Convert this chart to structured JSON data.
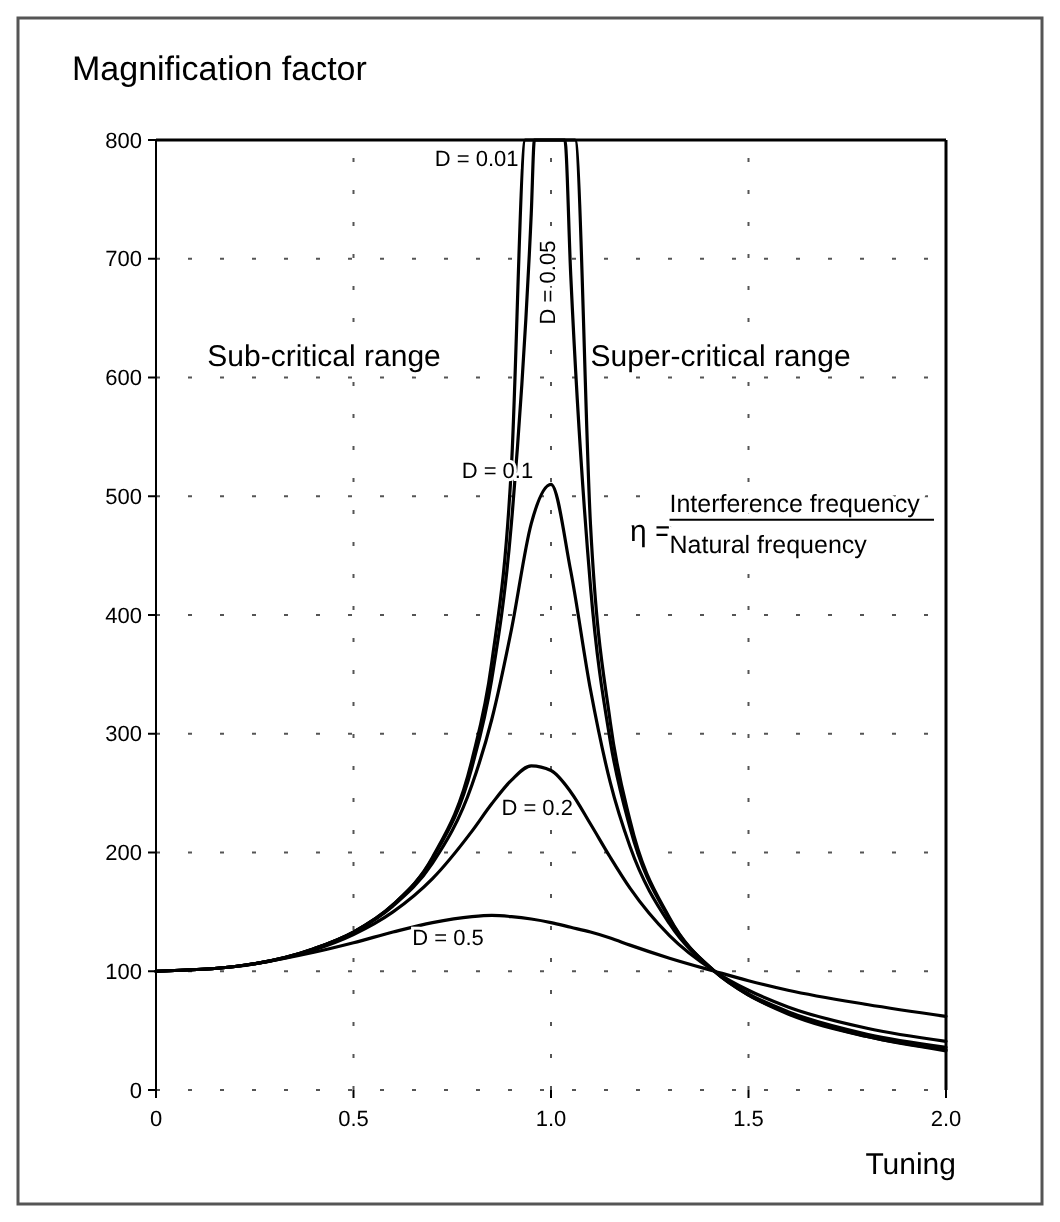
{
  "chart_data": {
    "type": "line",
    "title": "Magnification factor",
    "xlabel": "Tuning",
    "annotations": [
      "Sub-critical range",
      "Super-critical range",
      "η =",
      "Interference frequency",
      "Natural frequency"
    ],
    "x": [
      0,
      0.2,
      0.4,
      0.5,
      0.6,
      0.7,
      0.8,
      0.85,
      0.9,
      0.95,
      1.0,
      1.05,
      1.1,
      1.15,
      1.2,
      1.3,
      1.414,
      1.5,
      1.6,
      1.8,
      2.0
    ],
    "series": [
      {
        "name": "D = 0.01",
        "color": "#000000",
        "x": [
          0,
          0.2,
          0.4,
          0.5,
          0.6,
          0.7,
          0.8,
          0.85,
          0.9,
          0.935,
          1.061,
          1.1,
          1.15,
          1.2,
          1.3,
          1.414,
          1.5,
          1.6,
          1.8,
          2.0
        ],
        "values": [
          100,
          104,
          119,
          133,
          156,
          196,
          278,
          360,
          526,
          800,
          800,
          476,
          310,
          227,
          145,
          100,
          80,
          64,
          45,
          33
        ]
      },
      {
        "name": "D = 0.05",
        "color": "#000000",
        "x": [
          0,
          0.2,
          0.4,
          0.5,
          0.6,
          0.7,
          0.8,
          0.85,
          0.9,
          0.95,
          0.958,
          1.035,
          1.05,
          1.1,
          1.15,
          1.2,
          1.3,
          1.414,
          1.5,
          1.6,
          1.8,
          2.0
        ],
        "values": [
          100,
          104,
          119,
          133,
          156,
          195,
          272,
          346,
          478,
          738,
          800,
          800,
          686,
          424,
          294,
          221,
          144,
          100,
          80,
          65,
          45,
          34
        ]
      },
      {
        "name": "D = 0.1",
        "color": "#000000",
        "values": [
          100,
          104,
          119,
          133,
          155,
          191,
          257,
          312,
          388,
          477,
          510,
          437,
          337,
          259,
          205,
          140,
          100,
          81,
          66,
          47,
          36
        ]
      },
      {
        "name": "D = 0.2",
        "color": "#000000",
        "values": [
          100,
          104,
          118,
          131,
          150,
          178,
          218,
          241,
          261,
          273,
          269,
          251,
          224,
          196,
          170,
          130,
          100,
          84,
          70,
          52,
          41
        ]
      },
      {
        "name": "D = 0.5",
        "color": "#000000",
        "values": [
          100,
          104,
          116,
          124,
          133,
          141,
          146,
          147,
          146,
          144,
          141,
          137,
          133,
          128,
          122,
          111,
          100,
          92,
          84,
          72,
          62
        ]
      }
    ],
    "xlim": [
      0,
      2
    ],
    "xticks": [
      0,
      0.5,
      {
        "value": 1,
        "label": "1.0"
      },
      1.5,
      {
        "value": 2,
        "label": "2.0"
      }
    ],
    "ylim": [
      0,
      800
    ],
    "yticks": [
      0,
      100,
      200,
      300,
      400,
      500,
      600,
      700,
      800
    ],
    "grid": true,
    "marker": "none",
    "line_style": "solid"
  }
}
